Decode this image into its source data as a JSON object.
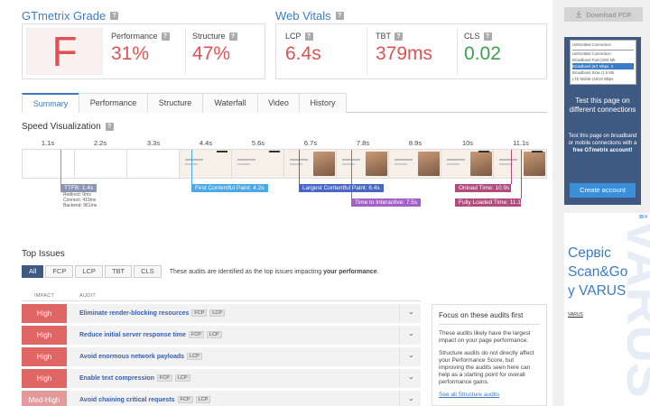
{
  "grade": {
    "title": "GTmetrix Grade",
    "letter": "F",
    "performance_label": "Performance",
    "performance_value": "31%",
    "structure_label": "Structure",
    "structure_value": "47%"
  },
  "web_vitals": {
    "title": "Web Vitals",
    "lcp_label": "LCP",
    "lcp_value": "6.4s",
    "tbt_label": "TBT",
    "tbt_value": "379ms",
    "cls_label": "CLS",
    "cls_value": "0.02"
  },
  "help_glyph": "?",
  "tabs": [
    {
      "label": "Summary",
      "active": true
    },
    {
      "label": "Performance"
    },
    {
      "label": "Structure"
    },
    {
      "label": "Waterfall"
    },
    {
      "label": "Video"
    },
    {
      "label": "History"
    }
  ],
  "speed": {
    "title": "Speed Visualization",
    "ticks": [
      "1.1s",
      "2.2s",
      "3.3s",
      "4.4s",
      "5.6s",
      "6.7s",
      "7.8s",
      "8.9s",
      "10s",
      "11.1s"
    ],
    "ttfb": "TTFB: 1.4s",
    "ttfb_details": [
      "Redirect: 0ms",
      "Connect: 419ms",
      "Backend: 961ms"
    ],
    "fcp": "First Contentful Paint: 4.2s",
    "lcp": "Largest Contentful Paint: 6.4s",
    "tti": "Time to Interactive: 7.5s",
    "onload": "Onload Time: 10.9s",
    "fully_loaded": "Fully Loaded Time: 11.1s"
  },
  "top_issues": {
    "title": "Top Issues",
    "filters": [
      "All",
      "FCP",
      "LCP",
      "TBT",
      "CLS"
    ],
    "note_prefix": "These audits are identified as the top issues impacting ",
    "note_bold": "your performance",
    "note_suffix": ".",
    "impact_header": "IMPACT",
    "audit_header": "AUDIT",
    "chevron": "⌄",
    "issues": [
      {
        "impact": "High",
        "title": "Eliminate render-blocking resources",
        "tags": [
          "FCP",
          "LCP"
        ]
      },
      {
        "impact": "High",
        "title": "Reduce initial server response time",
        "tags": [
          "FCP",
          "LCP"
        ]
      },
      {
        "impact": "High",
        "title": "Avoid enormous network payloads",
        "tags": [
          "LCP"
        ]
      },
      {
        "impact": "High",
        "title": "Enable text compression",
        "tags": [
          "FCP",
          "LCP"
        ]
      },
      {
        "impact": "Med-High",
        "title": "Avoid chaining critical requests",
        "tags": [
          "FCP",
          "LCP"
        ]
      }
    ]
  },
  "focus": {
    "title": "Focus on these audits first",
    "p1": "These audits likely have the largest impact on your page performance.",
    "p2": "Structure audits do not directly affect your Performance Score, but improving the audits seen here can help as a starting point for overall performance gains.",
    "link": "See all Structure audits"
  },
  "sidebar": {
    "download_label": "Download PDF",
    "promo_list": [
      "Unthrottled Connection",
      "Unthrottled Connection",
      "Broadband Fast (20/5 Mb",
      "Broadband (5/1 Mbps, 3",
      "Broadband Slow (1.5 Mb",
      "LTE Mobile (15/10 Mbps"
    ],
    "promo_heading": "Test this page on different connections",
    "promo_text_prefix": "Test this page on broadband or mobile connections with a ",
    "promo_text_bold": "free GTmetrix account!",
    "promo_button": "Create account",
    "ad_close": "⊠✕",
    "ad_text_line1": "Сервіс",
    "ad_text_line2": "Scan&Go",
    "ad_text_line3": "у VARUS",
    "ad_watermark": "VARUS",
    "ad_brand": "VARUS"
  }
}
